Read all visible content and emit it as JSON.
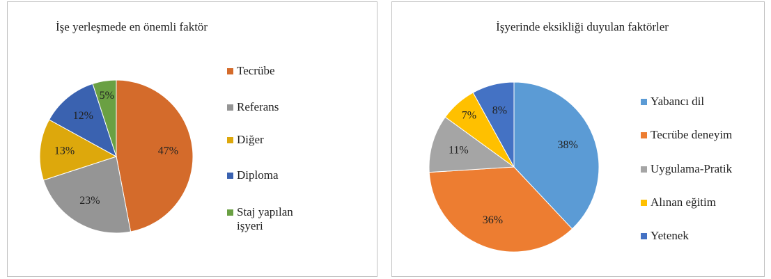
{
  "chart_data": [
    {
      "type": "pie",
      "title": "İşe yerleşmede en önemli faktör",
      "categories": [
        "Tecrübe",
        "Referans",
        "Diğer",
        "Diploma",
        "Staj yapılan işyeri"
      ],
      "values": [
        47,
        23,
        13,
        12,
        5
      ],
      "value_labels": [
        "47%",
        "23%",
        "13%",
        "12%",
        "5%"
      ],
      "colors": [
        "#d46b2b",
        "#959595",
        "#dda80c",
        "#3a62b0",
        "#6aa043"
      ],
      "legend": "right"
    },
    {
      "type": "pie",
      "title": "İşyerinde eksikliği duyulan faktörler",
      "categories": [
        "Yabancı dil",
        "Tecrübe deneyim",
        "Uygulama-Pratik",
        "Alınan eğitim",
        "Yetenek"
      ],
      "values": [
        38,
        36,
        11,
        7,
        8
      ],
      "value_labels": [
        "38%",
        "36%",
        "11%",
        "7%",
        "8%"
      ],
      "colors": [
        "#5b9bd5",
        "#ed7d31",
        "#a5a5a5",
        "#ffc000",
        "#4472c4"
      ],
      "legend": "right"
    }
  ]
}
